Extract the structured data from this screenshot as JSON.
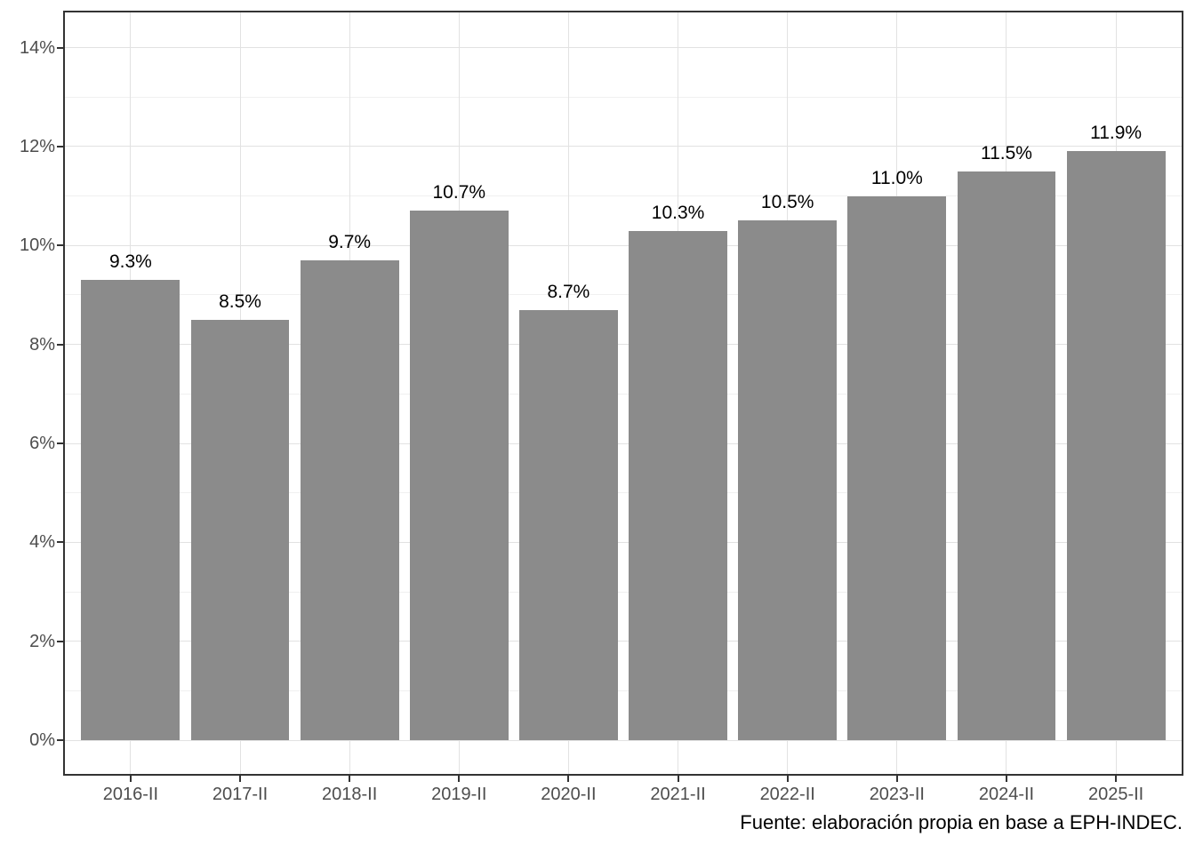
{
  "chart_data": {
    "type": "bar",
    "title": "",
    "xlabel": "",
    "ylabel": "",
    "categories": [
      "2016-II",
      "2017-II",
      "2018-II",
      "2019-II",
      "2020-II",
      "2021-II",
      "2022-II",
      "2023-II",
      "2024-II",
      "2025-II"
    ],
    "values": [
      9.3,
      8.5,
      9.7,
      10.7,
      8.7,
      10.3,
      10.5,
      11.0,
      11.5,
      11.9
    ],
    "bar_labels": [
      "9.3%",
      "8.5%",
      "9.7%",
      "10.7%",
      "8.7%",
      "10.3%",
      "10.5%",
      "11.0%",
      "11.5%",
      "11.9%"
    ],
    "y_tick_values": [
      0,
      2,
      4,
      6,
      8,
      10,
      12,
      14
    ],
    "y_tick_labels": [
      "0%",
      "2%",
      "4%",
      "6%",
      "8%",
      "10%",
      "12%",
      "14%"
    ],
    "y_minor_values": [
      1,
      3,
      5,
      7,
      9,
      11,
      13
    ],
    "ylim": [
      -0.68,
      14.71
    ],
    "grid": "major-and-minor",
    "legend": "none",
    "caption": "Fuente: elaboración propia en base a EPH-INDEC.",
    "colors": {
      "bar": "#8b8b8b",
      "panel_border": "#333333",
      "grid_major": "#e2e2e2",
      "grid_minor": "#f0f0f0",
      "axis_text": "#4d4d4d",
      "label_text": "#000000",
      "background": "#ffffff"
    }
  }
}
